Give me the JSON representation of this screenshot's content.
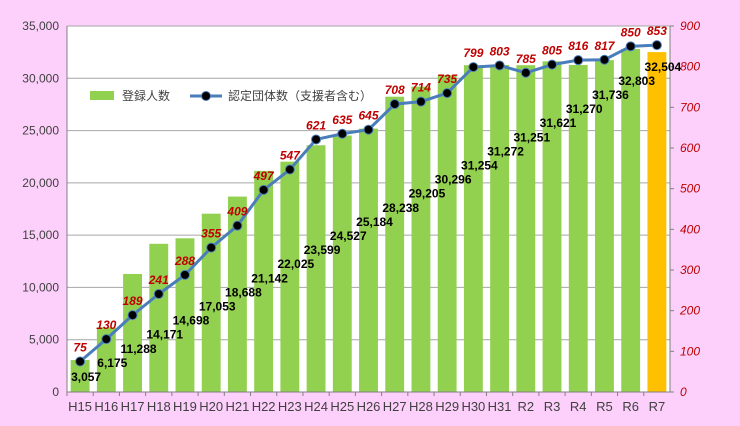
{
  "chart_data": {
    "type": "bar+line",
    "categories": [
      "H15",
      "H16",
      "H17",
      "H18",
      "H19",
      "H20",
      "H21",
      "H22",
      "H23",
      "H24",
      "H25",
      "H26",
      "H27",
      "H28",
      "H29",
      "H30",
      "H31",
      "R2",
      "R3",
      "R4",
      "R5",
      "R6",
      "R7"
    ],
    "series": [
      {
        "name": "登録人数",
        "type": "bar",
        "axis": "left",
        "color": "#92d050",
        "highlight_last_color": "#ffc000",
        "values": [
          3057,
          6175,
          11288,
          14171,
          14698,
          17053,
          18688,
          21142,
          22025,
          23599,
          24527,
          25184,
          28238,
          29205,
          30296,
          31254,
          31272,
          31251,
          31621,
          31270,
          31736,
          32803,
          32504
        ],
        "labels": [
          "3,057",
          "6,175",
          "11,288",
          "14,171",
          "14,698",
          "17,053",
          "18,688",
          "21,142",
          "22,025",
          "23,599",
          "24,527",
          "25,184",
          "28,238",
          "29,205",
          "30,296",
          "31,254",
          "31,272",
          "31,251",
          "31,621",
          "31,270",
          "31,736",
          "32,803",
          "32,504"
        ]
      },
      {
        "name": "認定団体数（支援者含む）",
        "type": "line",
        "axis": "right",
        "color": "#4a7ebb",
        "values": [
          75,
          130,
          189,
          241,
          288,
          355,
          409,
          497,
          547,
          621,
          635,
          645,
          708,
          714,
          735,
          799,
          803,
          785,
          805,
          816,
          817,
          850,
          853
        ]
      }
    ],
    "left_axis": {
      "min": 0,
      "max": 35000,
      "ticks": [
        "0",
        "5,000",
        "10,000",
        "15,000",
        "20,000",
        "25,000",
        "30,000",
        "35,000"
      ]
    },
    "right_axis": {
      "min": 0,
      "max": 900,
      "ticks": [
        "0",
        "100",
        "200",
        "300",
        "400",
        "500",
        "600",
        "700",
        "800",
        "900"
      ]
    },
    "grid": true,
    "legend": {
      "placement": "top-left",
      "entries": [
        "登録人数",
        "認定団体数（支援者含む）"
      ]
    }
  }
}
